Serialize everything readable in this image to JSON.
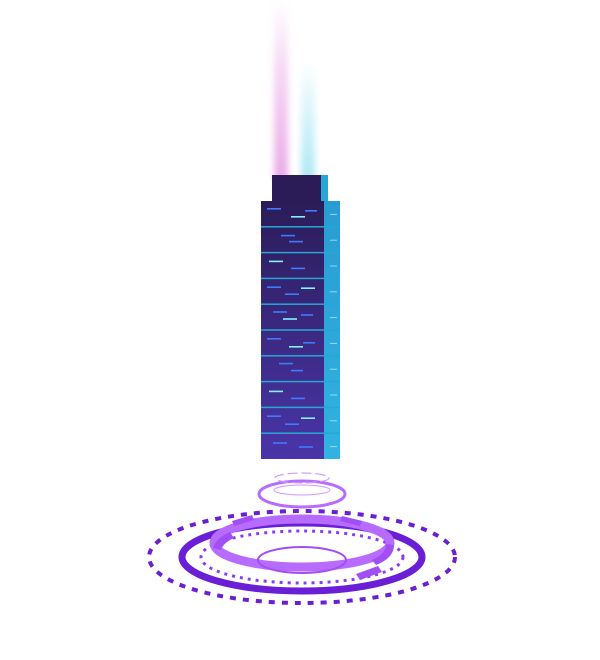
{
  "illustration": {
    "subject": "tower-on-hologram-pad",
    "background_color": "#ffffff",
    "colors": {
      "tower_front_top": "#2b1c58",
      "tower_front_bottom": "#4a35a8",
      "tower_side": "#27a7d6",
      "window_dim": "#3f7bff",
      "window_bright": "#7ff3ff",
      "beam_pink": "#e9a6e6",
      "beam_cyan": "#a9e6f4",
      "pad_deep": "#6a1fd6",
      "pad_light": "#b76cff"
    },
    "tower_floor_count": 10,
    "light_beam_count": 2,
    "hologram_ring_count": 3
  }
}
